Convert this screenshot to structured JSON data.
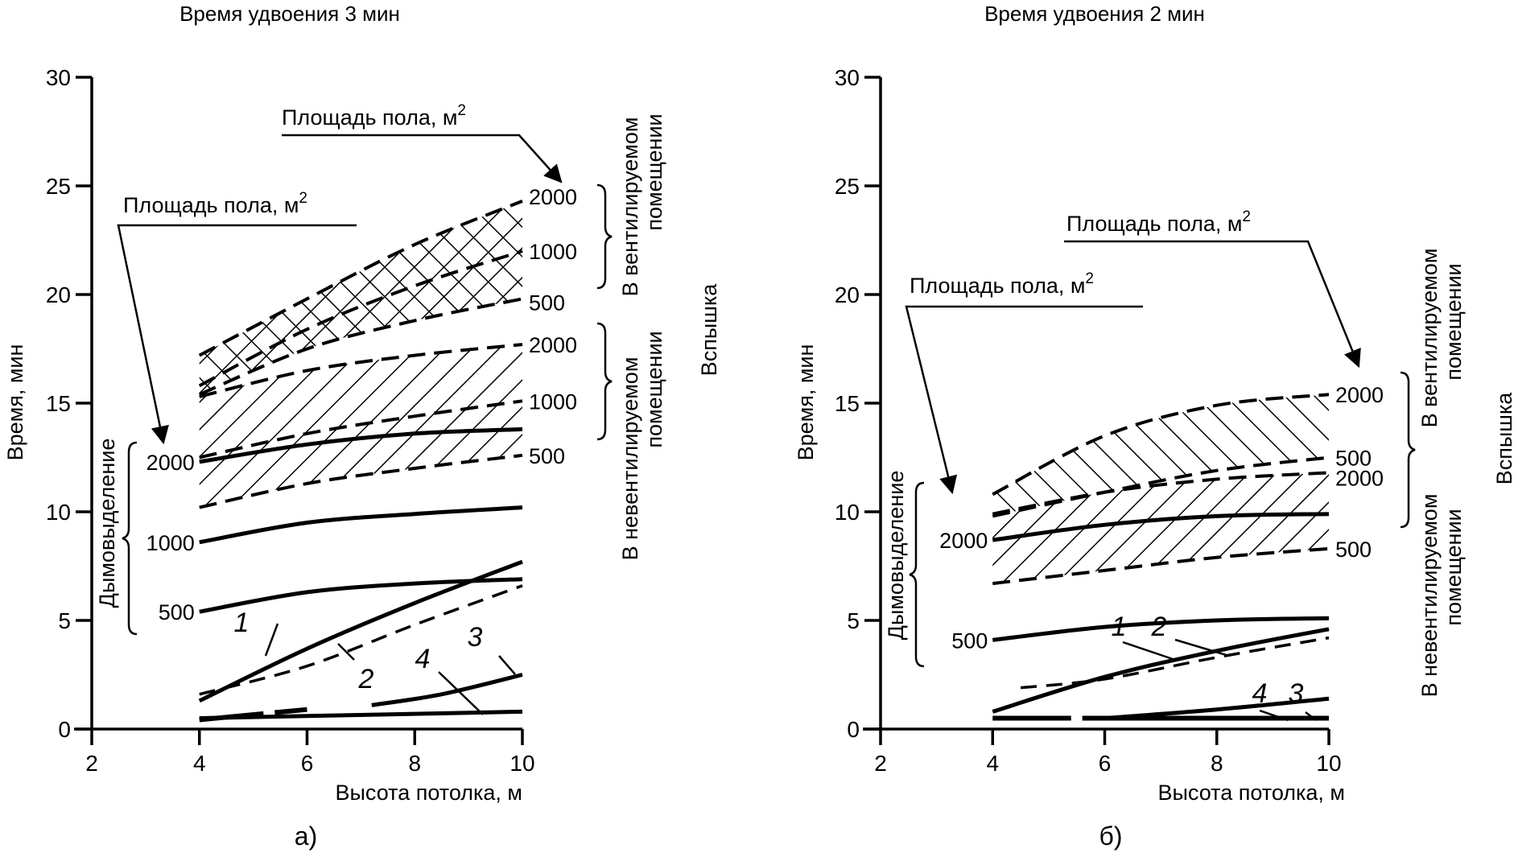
{
  "chart_data": [
    {
      "id": "a",
      "type": "line",
      "title": "Время удвоения 3 мин",
      "panel_label": "а)",
      "xlabel": "Высота потолка, м",
      "ylabel": "Время, мин",
      "xlim": [
        2,
        10
      ],
      "ylim": [
        0,
        30
      ],
      "xticks": [
        "2",
        "4",
        "6",
        "8",
        "10"
      ],
      "yticks": [
        "0",
        "5",
        "10",
        "15",
        "20",
        "25",
        "30"
      ],
      "grid": false,
      "annotations": {
        "floor_area_top": "Площадь пола, м",
        "floor_area_left": "Площадь пола, м",
        "superscript": "2",
        "ventilated": "В вентилируемом помещении",
        "ventilated_line1": "В вентилируемом",
        "ventilated_line2": "помещении",
        "non_ventilated_line1": "В невентилируемом",
        "non_ventilated_line2": "помещении",
        "flashover": "Вспышка",
        "smoke": "Дымовыделение"
      },
      "groups": [
        {
          "name": "Вспышка — в вентилируемом помещении",
          "hatch": "cross",
          "series": [
            {
              "name": "2000",
              "style": "dashed",
              "x": [
                4,
                6,
                8,
                10
              ],
              "y": [
                17.2,
                19.8,
                22.3,
                24.3
              ]
            },
            {
              "name": "1000",
              "style": "dashed",
              "x": [
                4,
                6,
                8,
                10
              ],
              "y": [
                15.8,
                18.4,
                20.4,
                22.0
              ]
            },
            {
              "name": "500",
              "style": "dashed",
              "x": [
                4,
                6,
                8,
                10
              ],
              "y": [
                15.4,
                17.5,
                18.8,
                19.8
              ]
            }
          ]
        },
        {
          "name": "Вспышка — в невентилируемом помещении",
          "hatch": "diagonal",
          "series": [
            {
              "name": "2000",
              "style": "dashed",
              "x": [
                4,
                6,
                8,
                10
              ],
              "y": [
                15.3,
                16.5,
                17.2,
                17.7
              ]
            },
            {
              "name": "1000",
              "style": "dashed",
              "x": [
                4,
                6,
                8,
                10
              ],
              "y": [
                12.5,
                13.6,
                14.4,
                15.1
              ]
            },
            {
              "name": "500",
              "style": "dashed",
              "x": [
                4,
                6,
                8,
                10
              ],
              "y": [
                10.2,
                11.3,
                12.0,
                12.6
              ]
            }
          ]
        },
        {
          "name": "Дымовыделение",
          "hatch": "none",
          "series": [
            {
              "name": "2000",
              "style": "solid",
              "x": [
                4,
                6,
                8,
                10
              ],
              "y": [
                12.3,
                13.1,
                13.6,
                13.8
              ]
            },
            {
              "name": "1000",
              "style": "solid",
              "x": [
                4,
                6,
                8,
                10
              ],
              "y": [
                8.6,
                9.5,
                9.9,
                10.2
              ]
            },
            {
              "name": "500",
              "style": "solid",
              "x": [
                4,
                6,
                8,
                10
              ],
              "y": [
                5.4,
                6.3,
                6.7,
                6.9
              ]
            }
          ]
        }
      ],
      "numbered_curves": [
        {
          "name": "1",
          "style": "solid",
          "x": [
            4,
            6,
            8,
            10
          ],
          "y": [
            1.3,
            3.7,
            5.8,
            7.7
          ]
        },
        {
          "name": "2",
          "style": "dashed",
          "x": [
            4,
            6,
            8,
            10
          ],
          "y": [
            1.6,
            2.9,
            4.8,
            6.6
          ]
        },
        {
          "name": "3",
          "style": "solid",
          "x": [
            7.2,
            8.5,
            10
          ],
          "y": [
            1.1,
            1.6,
            2.5
          ]
        },
        {
          "name": "4",
          "style": "solid",
          "x": [
            4,
            6,
            8,
            10
          ],
          "y": [
            0.5,
            0.6,
            0.7,
            0.8
          ]
        }
      ],
      "extra_segments": [
        {
          "style": "solid-broken",
          "x": [
            4,
            6
          ],
          "y": [
            0.5,
            0.9
          ]
        }
      ]
    },
    {
      "id": "b",
      "type": "line",
      "title": "Время удвоения 2 мин",
      "panel_label": "б)",
      "xlabel": "Высота потолка, м",
      "ylabel": "Время, мин",
      "xlim": [
        2,
        10
      ],
      "ylim": [
        0,
        30
      ],
      "xticks": [
        "2",
        "4",
        "6",
        "8",
        "10"
      ],
      "yticks": [
        "0",
        "5",
        "10",
        "15",
        "20",
        "25",
        "30"
      ],
      "grid": false,
      "annotations": {
        "floor_area_top": "Площадь пола, м",
        "floor_area_left": "Площадь пола, м",
        "superscript": "2",
        "ventilated_line1": "В вентилируемом",
        "ventilated_line2": "помещении",
        "non_ventilated_line1": "В невентилируемом",
        "non_ventilated_line2": "помещении",
        "flashover": "Вспышка",
        "smoke": "Дымовыделение"
      },
      "groups": [
        {
          "name": "Вспышка — в вентилируемом помещении",
          "hatch": "back-diagonal",
          "series": [
            {
              "name": "2000",
              "style": "dashed",
              "x": [
                4,
                6,
                8,
                10
              ],
              "y": [
                10.8,
                13.5,
                14.9,
                15.4
              ]
            },
            {
              "name": "500",
              "style": "dashed",
              "x": [
                4,
                6,
                8,
                10
              ],
              "y": [
                9.8,
                10.9,
                11.9,
                12.5
              ]
            }
          ]
        },
        {
          "name": "Вспышка — в невентилируемом помещении",
          "hatch": "diagonal",
          "series": [
            {
              "name": "2000",
              "style": "dashed",
              "x": [
                4,
                6,
                8,
                10
              ],
              "y": [
                9.9,
                10.9,
                11.5,
                11.8
              ]
            },
            {
              "name": "500",
              "style": "dashed",
              "x": [
                4,
                6,
                8,
                10
              ],
              "y": [
                6.7,
                7.3,
                7.9,
                8.3
              ]
            }
          ]
        },
        {
          "name": "Дымовыделение",
          "hatch": "none",
          "series": [
            {
              "name": "2000",
              "style": "solid",
              "x": [
                4,
                6,
                8,
                10
              ],
              "y": [
                8.7,
                9.4,
                9.8,
                9.9
              ]
            },
            {
              "name": "500",
              "style": "solid",
              "x": [
                4,
                6,
                8,
                10
              ],
              "y": [
                4.1,
                4.7,
                5.0,
                5.1
              ]
            }
          ]
        }
      ],
      "numbered_curves": [
        {
          "name": "1",
          "style": "solid",
          "x": [
            4,
            6,
            8,
            10
          ],
          "y": [
            0.8,
            2.4,
            3.6,
            4.6
          ]
        },
        {
          "name": "2",
          "style": "dashed",
          "x": [
            4.5,
            6,
            8,
            10
          ],
          "y": [
            1.9,
            2.3,
            3.3,
            4.2
          ]
        },
        {
          "name": "3",
          "style": "solid",
          "x": [
            6,
            8,
            10
          ],
          "y": [
            0.5,
            0.9,
            1.4
          ]
        },
        {
          "name": "4",
          "style": "solid",
          "x": [
            4,
            5.4,
            5.6,
            10
          ],
          "y": [
            0.5,
            0.5,
            0.5,
            0.5
          ]
        }
      ],
      "extra_segments": []
    }
  ]
}
